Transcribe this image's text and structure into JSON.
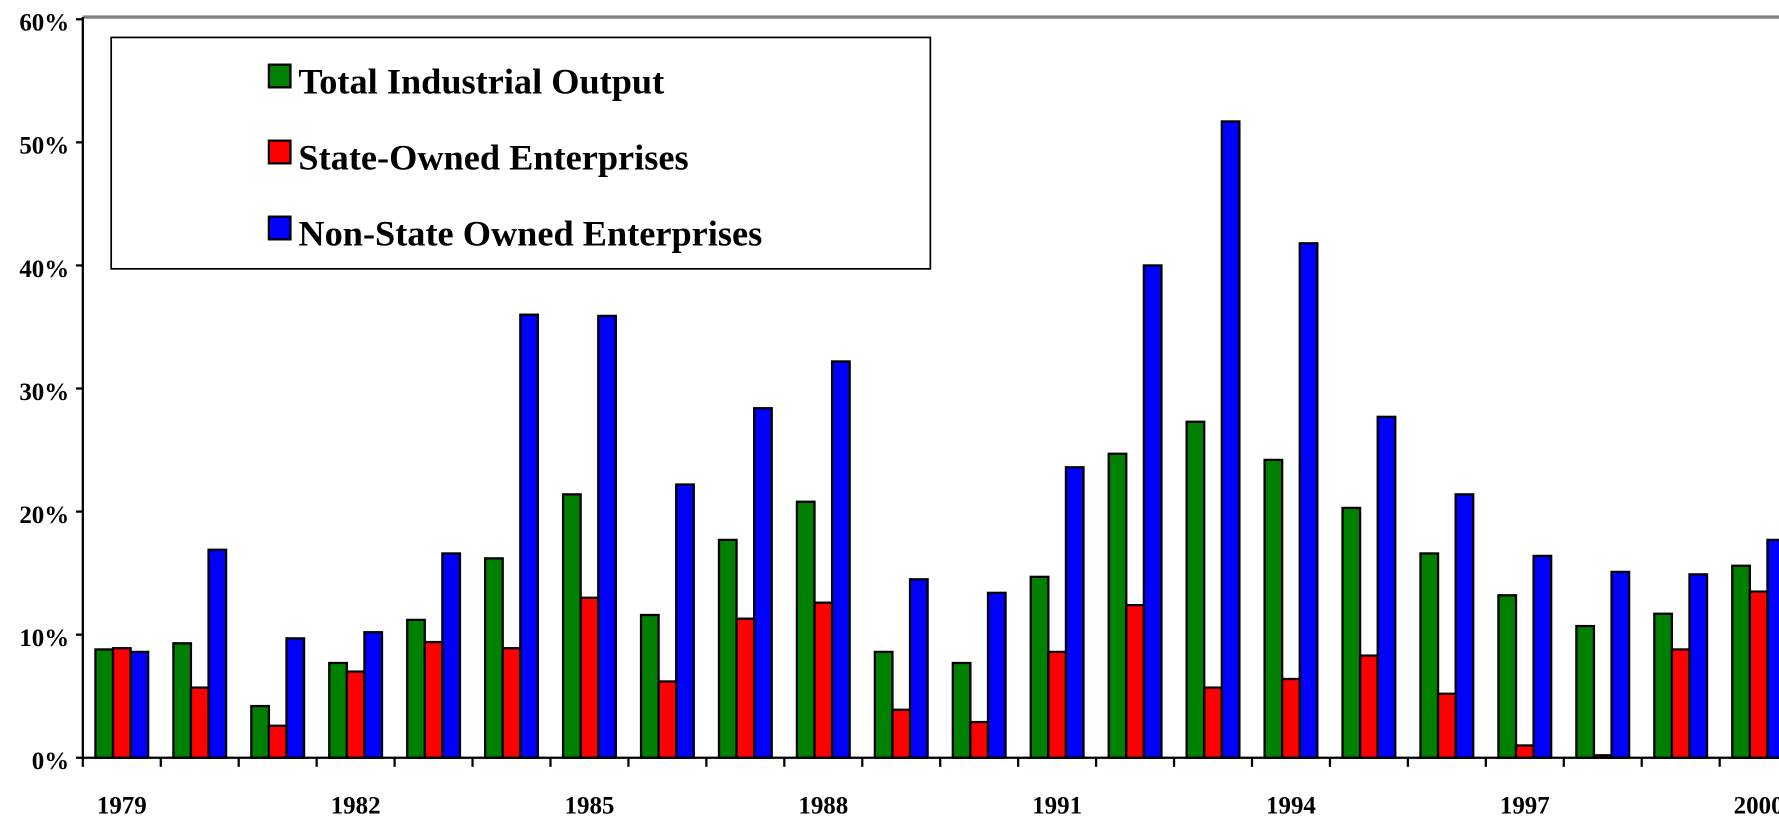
{
  "chart_data": {
    "type": "bar",
    "categories": [
      "1979",
      null,
      null,
      "1982",
      null,
      null,
      "1985",
      null,
      null,
      "1988",
      null,
      null,
      "1991",
      null,
      null,
      "1994",
      null,
      null,
      "1997",
      null,
      null,
      "2000"
    ],
    "series": [
      {
        "name": "Total Industrial Output",
        "color": "#008000",
        "values": [
          8.8,
          9.3,
          4.2,
          7.7,
          11.2,
          16.2,
          21.4,
          11.6,
          17.7,
          20.8,
          8.6,
          7.7,
          14.7,
          24.7,
          27.3,
          24.2,
          20.3,
          16.6,
          13.2,
          10.7,
          11.7,
          15.6
        ]
      },
      {
        "name": "State-Owned Enterprises",
        "color": "#ff0000",
        "values": [
          8.9,
          5.7,
          2.6,
          7.0,
          9.4,
          8.9,
          13.0,
          6.2,
          11.3,
          12.6,
          3.9,
          2.9,
          8.6,
          12.4,
          5.7,
          6.4,
          8.3,
          5.2,
          1.0,
          0.2,
          8.8,
          13.5
        ]
      },
      {
        "name": "Non-State Owned Enterprises",
        "color": "#0000ff",
        "values": [
          8.6,
          16.9,
          9.7,
          10.2,
          16.6,
          36.0,
          35.9,
          22.2,
          28.4,
          32.2,
          14.5,
          13.4,
          23.6,
          40.0,
          51.7,
          41.8,
          27.7,
          21.4,
          16.4,
          15.1,
          14.9,
          17.7
        ]
      }
    ],
    "ylim": [
      0,
      60
    ],
    "yticks": [
      {
        "value": 0,
        "label": "0%"
      },
      {
        "value": 10,
        "label": "10%"
      },
      {
        "value": 20,
        "label": "20%"
      },
      {
        "value": 30,
        "label": "30%"
      },
      {
        "value": 40,
        "label": "40%"
      },
      {
        "value": 50,
        "label": "50%"
      },
      {
        "value": 60,
        "label": "60%"
      }
    ],
    "legend": "upper left"
  }
}
